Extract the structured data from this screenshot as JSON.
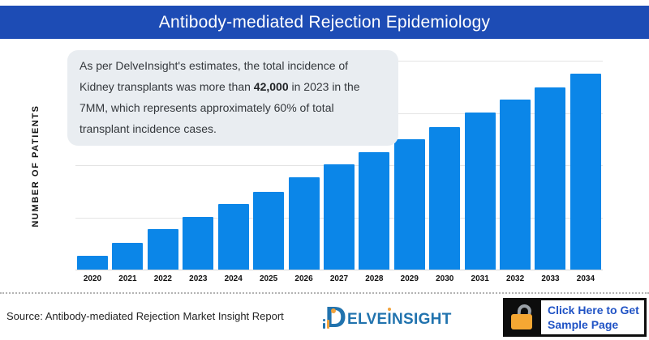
{
  "header": {
    "title": "Antibody-mediated Rejection Epidemiology"
  },
  "y_axis_label": "NUMBER OF PATIENTS",
  "annotation": {
    "text_before": "As per DelveInsight's estimates, the total incidence of Kidney transplants was more than ",
    "bold_value": "42,000",
    "text_after": " in 2023 in the 7MM, which represents approximately 60% of total transplant incidence cases."
  },
  "chart_data": {
    "type": "bar",
    "title": "Antibody-mediated Rejection Epidemiology",
    "xlabel": "",
    "ylabel": "NUMBER OF PATIENTS",
    "categories": [
      "2020",
      "2021",
      "2022",
      "2023",
      "2024",
      "2025",
      "2026",
      "2027",
      "2028",
      "2029",
      "2030",
      "2031",
      "2032",
      "2033",
      "2034"
    ],
    "values_fraction_of_axis": [
      0.066,
      0.128,
      0.194,
      0.252,
      0.314,
      0.372,
      0.442,
      0.504,
      0.562,
      0.624,
      0.684,
      0.752,
      0.814,
      0.872,
      0.938
    ],
    "y_axis_tick_labels_visible": false,
    "axis_range_note": "no numeric y-axis ticks shown; values are bar heights as fraction of plot height",
    "grid": "horizontal",
    "gridline_count": 5,
    "legend": "none",
    "bar_color": "#0b86e8"
  },
  "footer": {
    "source": "Source: Antibody-mediated Rejection Market Insight Report",
    "logo": {
      "d_letter": "D",
      "text_part1": "ELVE",
      "text_part2": "I",
      "text_part3": "NSIGHT"
    },
    "button": {
      "line1": "Click Here to Get",
      "line2": "Sample Page"
    }
  },
  "colors": {
    "header_blue": "#1d4cb5",
    "bar_blue": "#0b86e8",
    "annotation_bg": "#e9edf1",
    "gridline": "#e4e4e4",
    "logo_blue": "#2173ae",
    "logo_orange": "#f2a33c",
    "button_text_blue": "#2053c5",
    "padlock_orange": "#f5a733",
    "padlock_shackle_gray": "#9aa0a6"
  }
}
